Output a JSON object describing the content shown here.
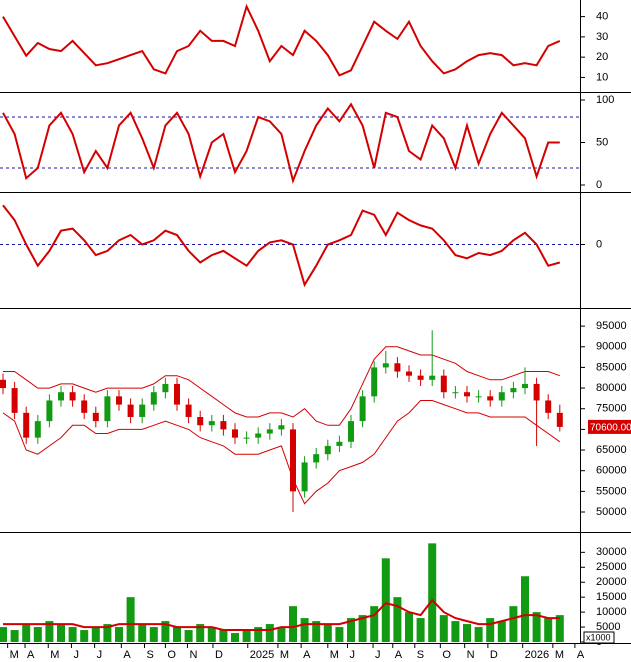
{
  "chart_data": [
    {
      "type": "line",
      "color": "#d40000",
      "ylim": [
        3.8,
        47.2
      ],
      "yticks": [
        10,
        20,
        30,
        40
      ],
      "values": [
        40,
        30.3,
        20.7,
        27,
        24,
        23,
        28,
        22,
        16,
        17,
        19,
        21,
        23,
        14,
        12,
        23,
        25.5,
        33,
        28,
        28,
        25.5,
        45,
        33,
        18,
        25.5,
        21,
        33,
        28,
        21,
        11,
        13.5,
        25.5,
        37.5,
        33,
        29,
        37.5,
        25.5,
        18,
        12,
        14,
        18,
        21,
        22,
        21,
        16,
        17,
        16,
        25.5,
        28
      ]
    },
    {
      "type": "line",
      "color": "#d40000",
      "ylim": [
        -5.9,
        105.9
      ],
      "yticks": [
        0,
        50,
        100
      ],
      "levels": [
        20,
        80
      ],
      "values": [
        85,
        60,
        8,
        20,
        70,
        85,
        60,
        15,
        40,
        20,
        70,
        85,
        55,
        20,
        70,
        85,
        60,
        10,
        50,
        60,
        15,
        40,
        80,
        75,
        60,
        5,
        40,
        70,
        90,
        75,
        95,
        70,
        20,
        85,
        80,
        40,
        30,
        70,
        55,
        20,
        70,
        25,
        60,
        85,
        70,
        55,
        10,
        50,
        50
      ]
    },
    {
      "type": "line",
      "color": "#d40000",
      "ylim": [
        -5.8,
        4.67
      ],
      "yticks": [
        0
      ],
      "levels": [
        0
      ],
      "values": [
        3.7,
        2.3,
        0,
        -2,
        -0.6,
        1.3,
        1.5,
        0.4,
        -1,
        -0.6,
        0.4,
        0.9,
        0,
        0.4,
        1.3,
        0.9,
        -0.6,
        -1.7,
        -1,
        -0.6,
        -1.3,
        -2,
        -0.6,
        0.2,
        0.4,
        0,
        -3.8,
        -2,
        0,
        0.4,
        0.9,
        3.2,
        2.8,
        0.9,
        3,
        2.3,
        1.8,
        1.5,
        0.4,
        -1,
        -1.3,
        -0.8,
        -1,
        -0.6,
        0.4,
        1.1,
        0,
        -2,
        -1.7
      ]
    },
    {
      "type": "candlestick",
      "up_color": "#129a12",
      "down_color": "#d40000",
      "band_color": "#d40000",
      "ylim": [
        45400,
        98900
      ],
      "yticks": [
        50000,
        55000,
        60000,
        65000,
        70000,
        75000,
        80000,
        85000,
        90000,
        95000
      ],
      "last_label": "70600.00",
      "open": [
        82000,
        80000,
        74000,
        68000,
        72000,
        77000,
        79000,
        77000,
        74000,
        72000,
        78000,
        76000,
        73000,
        76000,
        79000,
        81000,
        76000,
        73000,
        71000,
        72000,
        70000,
        68000,
        68000,
        69000,
        70000,
        70000,
        55000,
        62000,
        64000,
        66000,
        67000,
        72000,
        78000,
        85000,
        86000,
        84000,
        83000,
        82000,
        83000,
        79000,
        79000,
        78000,
        78000,
        77000,
        79000,
        80000,
        81000,
        77000,
        74000
      ],
      "high": [
        83500,
        81500,
        75500,
        73500,
        78500,
        80500,
        80500,
        78500,
        75500,
        79500,
        79500,
        77500,
        77500,
        80500,
        82500,
        82500,
        77500,
        74500,
        73500,
        73500,
        71500,
        69500,
        70500,
        71500,
        72500,
        71500,
        63500,
        65500,
        67500,
        68500,
        73500,
        79500,
        86500,
        89000,
        87500,
        85500,
        84500,
        94000,
        84500,
        80500,
        80500,
        79500,
        79500,
        80500,
        81500,
        85000,
        82500,
        78500,
        76000
      ],
      "low": [
        78500,
        72500,
        66500,
        66500,
        70500,
        75500,
        75500,
        72500,
        70500,
        70500,
        74500,
        71500,
        71500,
        74500,
        77500,
        74500,
        71500,
        69500,
        69500,
        68500,
        66500,
        66500,
        66500,
        67500,
        68500,
        50000,
        53500,
        60500,
        62500,
        64500,
        65500,
        70500,
        76500,
        83500,
        82500,
        81500,
        80500,
        80500,
        77500,
        77500,
        76500,
        76500,
        75500,
        75500,
        77500,
        78500,
        66000,
        72500,
        69500
      ],
      "close": [
        80000,
        74000,
        68000,
        72000,
        77000,
        79000,
        77000,
        74000,
        72000,
        78000,
        76000,
        73000,
        76000,
        79000,
        81000,
        76000,
        73000,
        71000,
        72000,
        70000,
        68000,
        68000,
        69000,
        70000,
        71000,
        55000,
        62000,
        64000,
        66000,
        67000,
        72000,
        78000,
        85000,
        86000,
        84000,
        83000,
        82000,
        83000,
        79000,
        79000,
        78000,
        78000,
        77000,
        79000,
        80000,
        81000,
        77000,
        74000,
        70600
      ],
      "upper": [
        84000,
        84000,
        82000,
        80000,
        80000,
        81000,
        81000,
        80000,
        79000,
        80000,
        80000,
        80000,
        80000,
        81000,
        83000,
        83000,
        82000,
        80000,
        78000,
        76000,
        74000,
        73000,
        73000,
        74000,
        74000,
        73000,
        75000,
        72000,
        71000,
        71000,
        75000,
        81000,
        87000,
        90000,
        90000,
        89000,
        88000,
        88000,
        87000,
        86000,
        84000,
        83000,
        82000,
        82000,
        83000,
        84000,
        84000,
        84000,
        83000
      ],
      "lower": [
        74000,
        72000,
        65000,
        64000,
        66000,
        68000,
        71000,
        71000,
        69000,
        69000,
        70000,
        70000,
        70000,
        71000,
        72000,
        71000,
        70000,
        68000,
        67000,
        66000,
        64000,
        64000,
        64000,
        65000,
        66000,
        58000,
        52000,
        55000,
        57000,
        60000,
        61000,
        62000,
        64000,
        68000,
        72000,
        74000,
        77000,
        77000,
        76000,
        75000,
        74000,
        74000,
        73000,
        73000,
        73000,
        73000,
        71000,
        69000,
        67000
      ]
    },
    {
      "type": "bar",
      "color": "#129a12",
      "average_color": "#d40000",
      "ylim": [
        0,
        35800
      ],
      "yticks": [
        0,
        5000,
        10000,
        15000,
        20000,
        25000,
        30000
      ],
      "unit_label": "x1000",
      "values": [
        5000,
        4000,
        6000,
        5000,
        7000,
        6000,
        5000,
        4000,
        5000,
        6000,
        5000,
        15000,
        6000,
        5000,
        7000,
        5000,
        4000,
        6000,
        5000,
        4000,
        3000,
        4000,
        5000,
        6000,
        5000,
        12000,
        8000,
        7000,
        6000,
        5000,
        8000,
        9000,
        12000,
        28000,
        15000,
        10000,
        8000,
        33000,
        9000,
        7000,
        6000,
        5000,
        8000,
        7000,
        12000,
        22000,
        10000,
        8000,
        9000
      ],
      "average": [
        6000,
        6000,
        6000,
        6000,
        6000,
        6000,
        6000,
        5000,
        5000,
        5000,
        6000,
        6000,
        6000,
        6000,
        6000,
        5000,
        5000,
        5000,
        5000,
        4000,
        4000,
        4000,
        4000,
        4000,
        5000,
        5000,
        6000,
        6000,
        6000,
        6000,
        7000,
        8000,
        9000,
        13000,
        12000,
        10000,
        9000,
        14000,
        10000,
        8000,
        7000,
        6000,
        6000,
        7000,
        8000,
        9000,
        9000,
        8000,
        8000
      ],
      "xlim": [
        0,
        50
      ],
      "xticks": [
        {
          "value": 0.4,
          "label": "M"
        },
        {
          "value": 1.9,
          "label": "A"
        },
        {
          "value": 3.9,
          "label": "M"
        },
        {
          "value": 5.9,
          "label": "J"
        },
        {
          "value": 7.9,
          "label": "J"
        },
        {
          "value": 10.2,
          "label": "A"
        },
        {
          "value": 12.2,
          "label": "S"
        },
        {
          "value": 14,
          "label": "O"
        },
        {
          "value": 15.9,
          "label": "N"
        },
        {
          "value": 18.1,
          "label": "D"
        },
        {
          "value": 21.1,
          "label": "2025"
        },
        {
          "value": 23.7,
          "label": "M"
        },
        {
          "value": 25.7,
          "label": "A"
        },
        {
          "value": 28,
          "label": "M"
        },
        {
          "value": 29.7,
          "label": "J"
        },
        {
          "value": 31.9,
          "label": "J"
        },
        {
          "value": 33.6,
          "label": "A"
        },
        {
          "value": 35.5,
          "label": "S"
        },
        {
          "value": 37.7,
          "label": "O"
        },
        {
          "value": 39.8,
          "label": "N"
        },
        {
          "value": 41.8,
          "label": "D"
        },
        {
          "value": 44.8,
          "label": "2026"
        },
        {
          "value": 47.4,
          "label": "M"
        },
        {
          "value": 49.3,
          "label": "A"
        }
      ]
    }
  ]
}
